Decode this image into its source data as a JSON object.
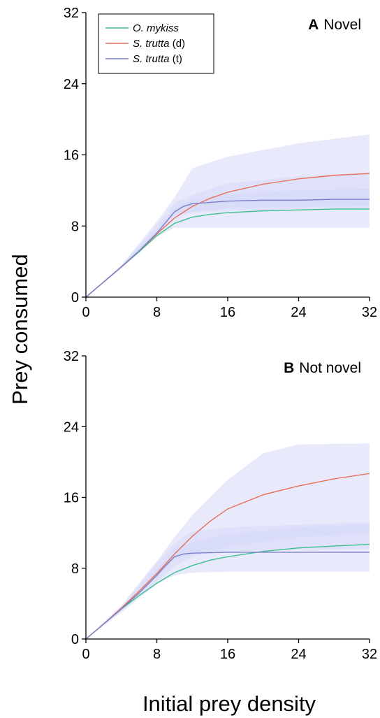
{
  "figure": {
    "ylabel": "Prey consumed",
    "xlabel": "Initial prey density"
  },
  "legend": [
    {
      "italic": "O. mykiss",
      "suffix": "",
      "color": "#3fbf8f"
    },
    {
      "italic": "S. trutta",
      "suffix": " (d)",
      "color": "#e8705a"
    },
    {
      "italic": "S. trutta",
      "suffix": " (t)",
      "color": "#7a7fc8"
    }
  ],
  "chart_data": [
    {
      "type": "line",
      "panel_letter": "A",
      "panel_name": "Novel",
      "xlim": [
        0,
        32
      ],
      "ylim": [
        0,
        32
      ],
      "xticks": [
        "0",
        "8",
        "16",
        "24",
        "32"
      ],
      "yticks": [
        "0",
        "8",
        "16",
        "24",
        "32"
      ],
      "grid": false,
      "legend_placement": "top-left",
      "band_color": "#d5d8f8",
      "bands": [
        {
          "x": [
            0,
            4,
            8,
            10,
            12,
            16,
            24,
            32
          ],
          "lower": [
            0,
            3.2,
            6.8,
            7.8,
            7.8,
            7.8,
            7.8,
            7.8
          ],
          "upper": [
            0,
            3.6,
            8.5,
            11.2,
            14.5,
            15.8,
            17.3,
            18.3
          ]
        },
        {
          "x": [
            0,
            4,
            8,
            10,
            12,
            16,
            24,
            32
          ],
          "lower": [
            0,
            3.3,
            7.2,
            9.3,
            9.5,
            9.7,
            9.9,
            10.0
          ],
          "upper": [
            0,
            3.5,
            8.1,
            10.6,
            11.5,
            12.8,
            13.6,
            14.0
          ]
        },
        {
          "x": [
            0,
            4,
            8,
            10,
            12,
            16,
            24,
            32
          ],
          "lower": [
            0,
            3.3,
            7.0,
            9.0,
            9.6,
            10.0,
            10.2,
            10.3
          ],
          "upper": [
            0,
            3.5,
            7.6,
            10.0,
            11.0,
            11.6,
            12.0,
            12.2
          ]
        }
      ],
      "series": [
        {
          "name": "O. mykiss",
          "color": "#3fbf8f",
          "x": [
            0,
            2,
            4,
            6,
            8,
            10,
            12,
            14,
            16,
            20,
            24,
            28,
            32
          ],
          "y": [
            0,
            1.7,
            3.4,
            5.1,
            6.9,
            8.3,
            9.0,
            9.3,
            9.5,
            9.7,
            9.8,
            9.9,
            9.9
          ]
        },
        {
          "name": "S. trutta (d)",
          "color": "#e8705a",
          "x": [
            0,
            2,
            4,
            6,
            8,
            10,
            12,
            14,
            16,
            20,
            24,
            28,
            32
          ],
          "y": [
            0,
            1.7,
            3.4,
            5.2,
            7.1,
            8.9,
            10.2,
            11.1,
            11.8,
            12.7,
            13.3,
            13.7,
            13.9
          ]
        },
        {
          "name": "S. trutta (t)",
          "color": "#7a7fc8",
          "x": [
            0,
            2,
            4,
            6,
            8,
            9,
            10,
            11,
            12,
            16,
            20,
            24,
            28,
            32
          ],
          "y": [
            0,
            1.7,
            3.4,
            5.2,
            7.2,
            8.4,
            9.6,
            10.2,
            10.5,
            10.8,
            10.9,
            10.9,
            11.0,
            11.0
          ]
        }
      ]
    },
    {
      "type": "line",
      "panel_letter": "B",
      "panel_name": "Not novel",
      "xlim": [
        0,
        32
      ],
      "ylim": [
        0,
        32
      ],
      "xticks": [
        "0",
        "8",
        "16",
        "24",
        "32"
      ],
      "yticks": [
        "0",
        "8",
        "16",
        "24",
        "32"
      ],
      "grid": false,
      "band_color": "#d5d8f8",
      "bands": [
        {
          "x": [
            0,
            4,
            8,
            10,
            12,
            16,
            20,
            24,
            32
          ],
          "lower": [
            0,
            3.0,
            6.2,
            7.2,
            7.5,
            7.6,
            7.6,
            7.6,
            7.6
          ],
          "upper": [
            0,
            3.8,
            8.8,
            11.5,
            14.0,
            18.0,
            21.0,
            22.0,
            22.1
          ]
        },
        {
          "x": [
            0,
            4,
            8,
            10,
            12,
            16,
            20,
            24,
            32
          ],
          "lower": [
            0,
            3.2,
            6.5,
            8.2,
            9.3,
            10.5,
            11.0,
            11.5,
            12.0
          ],
          "upper": [
            0,
            3.6,
            8.6,
            10.8,
            12.2,
            12.6,
            12.8,
            12.9,
            13.2
          ]
        },
        {
          "x": [
            0,
            4,
            8,
            10,
            12,
            16,
            20,
            24,
            32
          ],
          "lower": [
            0,
            3.2,
            7.0,
            9.0,
            9.6,
            9.9,
            10.0,
            10.1,
            10.2
          ],
          "upper": [
            0,
            3.5,
            7.8,
            10.2,
            11.0,
            11.8,
            12.2,
            12.6,
            13.0
          ]
        }
      ],
      "series": [
        {
          "name": "O. mykiss",
          "color": "#3fbf8f",
          "x": [
            0,
            2,
            4,
            6,
            8,
            10,
            12,
            14,
            16,
            20,
            24,
            28,
            32
          ],
          "y": [
            0,
            1.7,
            3.4,
            4.9,
            6.3,
            7.5,
            8.3,
            8.9,
            9.3,
            9.9,
            10.3,
            10.5,
            10.7
          ]
        },
        {
          "name": "S. trutta (d)",
          "color": "#e8705a",
          "x": [
            0,
            2,
            4,
            6,
            8,
            10,
            12,
            14,
            16,
            20,
            24,
            28,
            32
          ],
          "y": [
            0,
            1.7,
            3.5,
            5.4,
            7.4,
            9.6,
            11.6,
            13.3,
            14.7,
            16.3,
            17.3,
            18.1,
            18.7
          ]
        },
        {
          "name": "S. trutta (t)",
          "color": "#7a7fc8",
          "x": [
            0,
            2,
            4,
            6,
            8,
            9,
            10,
            11,
            12,
            16,
            20,
            24,
            28,
            32
          ],
          "y": [
            0,
            1.7,
            3.4,
            5.2,
            7.2,
            8.3,
            9.3,
            9.6,
            9.7,
            9.8,
            9.8,
            9.8,
            9.8,
            9.8
          ]
        }
      ]
    }
  ]
}
